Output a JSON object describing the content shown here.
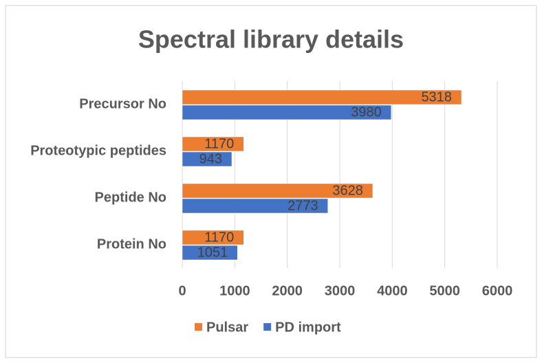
{
  "chart_data": {
    "type": "hbar",
    "title": "Spectral library details",
    "categories": [
      "Precursor No",
      "Proteotypic peptides",
      "Peptide No",
      "Protein No"
    ],
    "series": [
      {
        "name": "Pulsar",
        "color": "#ed7d31",
        "values": [
          5318,
          1170,
          3628,
          1170
        ]
      },
      {
        "name": "PD import",
        "color": "#4472c4",
        "values": [
          3980,
          943,
          2773,
          1051
        ]
      }
    ],
    "xlim": [
      0,
      6000
    ],
    "xticks": [
      0,
      1000,
      2000,
      3000,
      4000,
      5000,
      6000
    ],
    "grid": true,
    "legend": "bottom"
  }
}
